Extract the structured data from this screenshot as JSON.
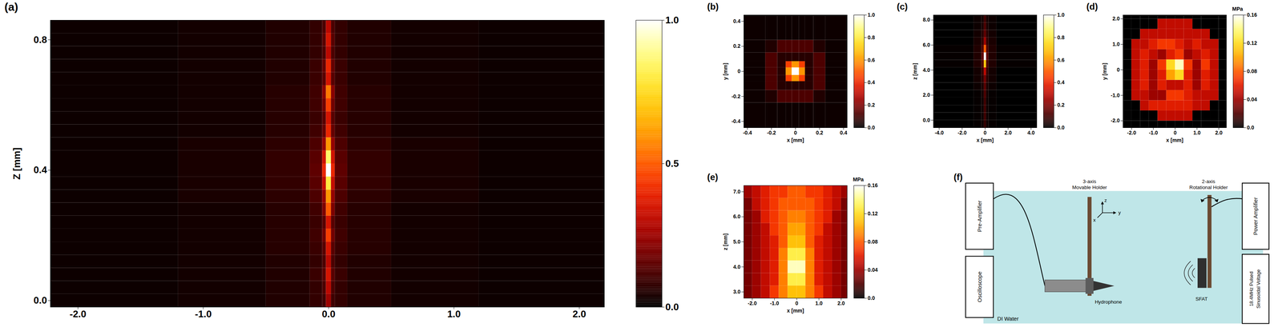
{
  "chart_data": [
    {
      "type": "heatmap",
      "panel_label": "(a)",
      "y_label": "Z [mm]",
      "xlim": [
        -2.22,
        2.2
      ],
      "ylim": [
        -0.02,
        0.86
      ],
      "xticks": [
        {
          "value": -2,
          "label": "-2.0"
        },
        {
          "value": -1,
          "label": "-1.0"
        },
        {
          "value": 0,
          "label": "0.0"
        },
        {
          "value": 1,
          "label": "1.0"
        },
        {
          "value": 2,
          "label": "2.0"
        }
      ],
      "yticks": [
        {
          "value": 0,
          "label": "0.0"
        },
        0.4,
        0.8
      ],
      "x_edges": [
        -2.22,
        -1.2,
        -0.5,
        -0.15,
        -0.05,
        -0.02,
        0.02,
        0.05,
        0.15,
        0.5,
        1.2,
        2.2
      ],
      "y_edges": [
        -0.02,
        0.02,
        0.06,
        0.1,
        0.14,
        0.18,
        0.22,
        0.26,
        0.3,
        0.34,
        0.38,
        0.42,
        0.46,
        0.5,
        0.54,
        0.58,
        0.62,
        0.66,
        0.7,
        0.74,
        0.78,
        0.82,
        0.86
      ],
      "cells": [
        [
          0.02,
          0.03,
          0.05,
          0.08,
          0.1,
          0.25,
          0.1,
          0.08,
          0.05,
          0.03,
          0.02
        ],
        [
          0.02,
          0.03,
          0.05,
          0.08,
          0.12,
          0.3,
          0.12,
          0.08,
          0.05,
          0.03,
          0.02
        ],
        [
          0.02,
          0.03,
          0.05,
          0.09,
          0.14,
          0.35,
          0.14,
          0.09,
          0.05,
          0.03,
          0.02
        ],
        [
          0.02,
          0.03,
          0.05,
          0.08,
          0.12,
          0.3,
          0.12,
          0.08,
          0.05,
          0.03,
          0.02
        ],
        [
          0.02,
          0.03,
          0.06,
          0.09,
          0.14,
          0.35,
          0.14,
          0.09,
          0.06,
          0.03,
          0.02
        ],
        [
          0.02,
          0.03,
          0.06,
          0.1,
          0.18,
          0.45,
          0.18,
          0.1,
          0.06,
          0.03,
          0.02
        ],
        [
          0.02,
          0.03,
          0.06,
          0.09,
          0.14,
          0.35,
          0.14,
          0.09,
          0.06,
          0.03,
          0.02
        ],
        [
          0.02,
          0.03,
          0.06,
          0.1,
          0.2,
          0.5,
          0.2,
          0.1,
          0.06,
          0.03,
          0.02
        ],
        [
          0.02,
          0.04,
          0.07,
          0.12,
          0.24,
          0.6,
          0.24,
          0.12,
          0.07,
          0.04,
          0.02
        ],
        [
          0.02,
          0.04,
          0.08,
          0.14,
          0.32,
          0.8,
          0.32,
          0.14,
          0.08,
          0.04,
          0.02
        ],
        [
          0.02,
          0.04,
          0.08,
          0.15,
          0.4,
          1.0,
          0.4,
          0.15,
          0.08,
          0.04,
          0.02
        ],
        [
          0.02,
          0.04,
          0.08,
          0.14,
          0.34,
          0.85,
          0.34,
          0.14,
          0.08,
          0.04,
          0.02
        ],
        [
          0.02,
          0.04,
          0.07,
          0.12,
          0.24,
          0.6,
          0.24,
          0.12,
          0.07,
          0.04,
          0.02
        ],
        [
          0.02,
          0.03,
          0.06,
          0.1,
          0.16,
          0.4,
          0.16,
          0.1,
          0.06,
          0.03,
          0.02
        ],
        [
          0.02,
          0.03,
          0.06,
          0.09,
          0.14,
          0.35,
          0.14,
          0.09,
          0.06,
          0.03,
          0.02
        ],
        [
          0.02,
          0.03,
          0.06,
          0.1,
          0.18,
          0.45,
          0.18,
          0.1,
          0.06,
          0.03,
          0.02
        ],
        [
          0.02,
          0.03,
          0.06,
          0.1,
          0.22,
          0.55,
          0.22,
          0.1,
          0.06,
          0.03,
          0.02
        ],
        [
          0.02,
          0.03,
          0.05,
          0.09,
          0.14,
          0.35,
          0.14,
          0.09,
          0.05,
          0.03,
          0.02
        ],
        [
          0.02,
          0.03,
          0.05,
          0.09,
          0.16,
          0.4,
          0.16,
          0.09,
          0.05,
          0.03,
          0.02
        ],
        [
          0.02,
          0.03,
          0.05,
          0.08,
          0.12,
          0.3,
          0.12,
          0.08,
          0.05,
          0.03,
          0.02
        ],
        [
          0.02,
          0.03,
          0.05,
          0.08,
          0.14,
          0.35,
          0.14,
          0.08,
          0.05,
          0.03,
          0.02
        ],
        [
          0.02,
          0.03,
          0.05,
          0.08,
          0.12,
          0.3,
          0.12,
          0.08,
          0.05,
          0.03,
          0.02
        ]
      ],
      "colorbar_lim": [
        0,
        1.0
      ],
      "colorbar_ticks": [
        {
          "value": 0,
          "label": "0.0"
        },
        0.5,
        {
          "value": 1,
          "label": "1.0"
        }
      ]
    },
    {
      "type": "heatmap",
      "panel_label": "(b)",
      "x_label": "x [mm]",
      "y_label": "y [mm]",
      "xlim": [
        -0.43,
        0.43
      ],
      "ylim": [
        -0.45,
        0.45
      ],
      "xticks": [
        -0.4,
        -0.2,
        0,
        0.2,
        0.4
      ],
      "yticks": [
        -0.4,
        -0.2,
        0,
        0.2,
        0.4
      ],
      "x_edges": [
        -0.45,
        -0.25,
        -0.15,
        -0.08,
        -0.03,
        0.03,
        0.08,
        0.15,
        0.25,
        0.45
      ],
      "y_edges": [
        -0.45,
        -0.25,
        -0.15,
        -0.08,
        -0.03,
        0.03,
        0.08,
        0.15,
        0.25,
        0.45
      ],
      "cells": [
        [
          0.02,
          0.02,
          0.02,
          0.02,
          0.02,
          0.02,
          0.02,
          0.02,
          0.02
        ],
        [
          0.02,
          0.05,
          0.12,
          0.12,
          0.12,
          0.12,
          0.12,
          0.05,
          0.02
        ],
        [
          0.02,
          0.12,
          0.06,
          0.06,
          0.06,
          0.06,
          0.06,
          0.12,
          0.02
        ],
        [
          0.02,
          0.12,
          0.06,
          0.45,
          0.6,
          0.45,
          0.06,
          0.12,
          0.02
        ],
        [
          0.02,
          0.12,
          0.06,
          0.6,
          1.0,
          0.6,
          0.06,
          0.12,
          0.02
        ],
        [
          0.02,
          0.12,
          0.06,
          0.45,
          0.6,
          0.45,
          0.06,
          0.12,
          0.02
        ],
        [
          0.02,
          0.12,
          0.06,
          0.06,
          0.06,
          0.06,
          0.06,
          0.12,
          0.02
        ],
        [
          0.02,
          0.05,
          0.12,
          0.12,
          0.12,
          0.12,
          0.12,
          0.05,
          0.02
        ],
        [
          0.02,
          0.02,
          0.02,
          0.02,
          0.02,
          0.02,
          0.02,
          0.02,
          0.02
        ]
      ],
      "colorbar_lim": [
        0,
        1.0
      ],
      "colorbar_ticks": [
        {
          "value": 0,
          "label": "0.0"
        },
        0.2,
        0.4,
        0.6,
        0.8,
        {
          "value": 1,
          "label": "1.0"
        }
      ]
    },
    {
      "type": "heatmap",
      "panel_label": "(c)",
      "x_label": "x [mm]",
      "y_label": "z [mm]",
      "xlim": [
        -4.5,
        4.5
      ],
      "ylim": [
        -0.6,
        8.4
      ],
      "xticks": [
        {
          "value": -4,
          "label": "-4.0"
        },
        {
          "value": -2,
          "label": "-2.0"
        },
        0,
        {
          "value": 2,
          "label": "2.0"
        },
        {
          "value": 4,
          "label": "4.0"
        }
      ],
      "yticks": [
        {
          "value": 0,
          "label": "0.0"
        },
        {
          "value": 2,
          "label": "2.0"
        },
        {
          "value": 4,
          "label": "4.0"
        },
        {
          "value": 6,
          "label": "6.0"
        },
        {
          "value": 8,
          "label": "8.0"
        }
      ],
      "x_edges": [
        -4.5,
        -1,
        -0.3,
        -0.1,
        0.1,
        0.3,
        1,
        4.5
      ],
      "y_edges": [
        -0.6,
        0,
        0.6,
        1.2,
        1.8,
        2.4,
        3.0,
        3.6,
        4.2,
        4.8,
        5.4,
        6.0,
        6.6,
        7.2,
        7.8,
        8.4
      ],
      "cells": [
        [
          0,
          0.01,
          0.02,
          0.08,
          0.02,
          0.01,
          0
        ],
        [
          0,
          0.01,
          0.02,
          0.1,
          0.02,
          0.01,
          0
        ],
        [
          0,
          0.01,
          0.02,
          0.1,
          0.02,
          0.01,
          0
        ],
        [
          0,
          0.01,
          0.02,
          0.1,
          0.02,
          0.01,
          0
        ],
        [
          0,
          0.01,
          0.03,
          0.12,
          0.03,
          0.01,
          0
        ],
        [
          0,
          0.02,
          0.04,
          0.14,
          0.04,
          0.02,
          0
        ],
        [
          0,
          0.03,
          0.06,
          0.18,
          0.06,
          0.03,
          0
        ],
        [
          0,
          0.03,
          0.08,
          0.3,
          0.08,
          0.03,
          0
        ],
        [
          0.01,
          0.05,
          0.12,
          0.7,
          0.12,
          0.05,
          0.01
        ],
        [
          0.01,
          0.05,
          0.15,
          1.0,
          0.15,
          0.05,
          0.01
        ],
        [
          0.01,
          0.05,
          0.12,
          0.5,
          0.12,
          0.05,
          0.01
        ],
        [
          0,
          0.04,
          0.08,
          0.25,
          0.08,
          0.04,
          0
        ],
        [
          0,
          0.03,
          0.06,
          0.15,
          0.06,
          0.03,
          0
        ],
        [
          0,
          0.02,
          0.04,
          0.12,
          0.04,
          0.02,
          0
        ],
        [
          0,
          0.02,
          0.03,
          0.1,
          0.03,
          0.02,
          0
        ]
      ],
      "colorbar_lim": [
        0,
        1.0
      ],
      "colorbar_ticks": [
        {
          "value": 0,
          "label": "0.0"
        },
        0.2,
        0.4,
        0.6,
        0.8,
        {
          "value": 1,
          "label": "1.0"
        }
      ]
    },
    {
      "type": "heatmap",
      "panel_label": "(d)",
      "x_label": "x [mm]",
      "y_label": "y [mm]",
      "xlim": [
        -2.39,
        2.35
      ],
      "ylim": [
        -2.27,
        2.15
      ],
      "xticks": [
        {
          "value": -2,
          "label": "-2.0"
        },
        {
          "value": -1,
          "label": "-1.0"
        },
        0,
        {
          "value": 1,
          "label": "1.0"
        },
        {
          "value": 2,
          "label": "2.0"
        }
      ],
      "yticks": [
        {
          "value": -2,
          "label": "-2.0"
        },
        {
          "value": -1,
          "label": "-1.0"
        },
        0,
        {
          "value": 1,
          "label": "1.0"
        },
        {
          "value": 2,
          "label": "2.0"
        }
      ],
      "x_edges": [
        -2.4,
        -2.0,
        -1.6,
        -1.2,
        -0.8,
        -0.4,
        0,
        0.4,
        0.8,
        1.2,
        1.6,
        2.0,
        2.4
      ],
      "y_edges": [
        -2.4,
        -2.0,
        -1.6,
        -1.2,
        -0.8,
        -0.4,
        0,
        0.4,
        0.8,
        1.2,
        1.6,
        2.0,
        2.4
      ],
      "cells": [
        [
          0,
          0,
          0,
          0,
          0,
          0,
          0,
          0,
          0,
          0,
          0,
          0
        ],
        [
          0,
          0,
          0,
          0,
          0.05,
          0.05,
          0.05,
          0.05,
          0,
          0,
          0,
          0
        ],
        [
          0,
          0,
          0.05,
          0.06,
          0.06,
          0.06,
          0.06,
          0.06,
          0.05,
          0.05,
          0,
          0
        ],
        [
          0,
          0.05,
          0.05,
          0.04,
          0.04,
          0.07,
          0.07,
          0.06,
          0.05,
          0.05,
          0.05,
          0
        ],
        [
          0,
          0.05,
          0.06,
          0.04,
          0.06,
          0.05,
          0.05,
          0.06,
          0.04,
          0.06,
          0.05,
          0
        ],
        [
          0,
          0.05,
          0.06,
          0.04,
          0.06,
          0.1,
          0.12,
          0.06,
          0.04,
          0.06,
          0.05,
          0
        ],
        [
          0,
          0.05,
          0.06,
          0.04,
          0.07,
          0.12,
          0.15,
          0.07,
          0.04,
          0.07,
          0.05,
          0
        ],
        [
          0,
          0.05,
          0.06,
          0.05,
          0.04,
          0.06,
          0.07,
          0.04,
          0.05,
          0.06,
          0.05,
          0
        ],
        [
          0,
          0.05,
          0.05,
          0.06,
          0.07,
          0.07,
          0.06,
          0.05,
          0.06,
          0.05,
          0.05,
          0
        ],
        [
          0,
          0,
          0.05,
          0.05,
          0.05,
          0.05,
          0.05,
          0.05,
          0.05,
          0.05,
          0,
          0
        ],
        [
          0,
          0,
          0,
          0,
          0.05,
          0.05,
          0.05,
          0.05,
          0,
          0,
          0,
          0
        ],
        [
          0,
          0,
          0,
          0,
          0,
          0,
          0,
          0,
          0,
          0,
          0,
          0
        ]
      ],
      "colorbar_label": "MPa",
      "colorbar_lim": [
        0,
        0.16
      ],
      "colorbar_ticks": [
        {
          "value": 0,
          "label": "0.0"
        },
        0.04,
        0.08,
        0.12,
        0.16
      ]
    },
    {
      "type": "heatmap",
      "panel_label": "(e)",
      "x_label": "x [mm]",
      "y_label": "z [mm]",
      "xlim": [
        -2.38,
        2.27
      ],
      "ylim": [
        2.75,
        7.25
      ],
      "xticks": [
        {
          "value": -2,
          "label": "-2.0"
        },
        {
          "value": -1,
          "label": "-1.0"
        },
        0,
        {
          "value": 1,
          "label": "1.0"
        },
        {
          "value": 2,
          "label": "2.0"
        }
      ],
      "yticks": [
        {
          "value": 3,
          "label": "3.0"
        },
        {
          "value": 4,
          "label": "4.0"
        },
        {
          "value": 5,
          "label": "5.0"
        },
        {
          "value": 6,
          "label": "6.0"
        },
        {
          "value": 7,
          "label": "7.0"
        }
      ],
      "x_edges": [
        -2.4,
        -2.0,
        -1.6,
        -1.2,
        -0.8,
        -0.4,
        0,
        0.4,
        0.8,
        1.2,
        1.6,
        2.0,
        2.4
      ],
      "y_edges": [
        2.75,
        3.25,
        3.75,
        4.25,
        4.75,
        5.25,
        5.75,
        6.25,
        6.75,
        7.25
      ],
      "cells": [
        [
          0.03,
          0.04,
          0.05,
          0.07,
          0.09,
          0.11,
          0.11,
          0.09,
          0.07,
          0.05,
          0.04,
          0.03
        ],
        [
          0.03,
          0.04,
          0.05,
          0.06,
          0.09,
          0.13,
          0.13,
          0.09,
          0.06,
          0.05,
          0.04,
          0.03
        ],
        [
          0.03,
          0.04,
          0.05,
          0.06,
          0.09,
          0.15,
          0.15,
          0.09,
          0.06,
          0.05,
          0.04,
          0.03
        ],
        [
          0.03,
          0.04,
          0.05,
          0.06,
          0.09,
          0.13,
          0.13,
          0.09,
          0.06,
          0.05,
          0.04,
          0.03
        ],
        [
          0.03,
          0.04,
          0.05,
          0.06,
          0.08,
          0.11,
          0.11,
          0.08,
          0.06,
          0.05,
          0.04,
          0.03
        ],
        [
          0.03,
          0.04,
          0.05,
          0.07,
          0.08,
          0.1,
          0.1,
          0.08,
          0.07,
          0.05,
          0.04,
          0.03
        ],
        [
          0.03,
          0.04,
          0.06,
          0.07,
          0.08,
          0.09,
          0.09,
          0.08,
          0.07,
          0.06,
          0.04,
          0.03
        ],
        [
          0.03,
          0.05,
          0.06,
          0.07,
          0.08,
          0.08,
          0.08,
          0.08,
          0.07,
          0.06,
          0.05,
          0.03
        ],
        [
          0.04,
          0.05,
          0.06,
          0.07,
          0.07,
          0.08,
          0.08,
          0.07,
          0.07,
          0.06,
          0.05,
          0.04
        ]
      ],
      "colorbar_label": "MPa",
      "colorbar_lim": [
        0,
        0.16
      ],
      "colorbar_ticks": [
        {
          "value": 0,
          "label": "0.0"
        },
        0.04,
        0.08,
        0.12,
        0.16
      ]
    }
  ],
  "diagram": {
    "panel_label": "(f)",
    "pre_amplifier": "Pre-Amplifier",
    "oscilloscope": "Oscilloscope",
    "power_amplifier": "Power Amplifier",
    "signal": "18.4MHz Pulsed Sinusoidal Voltage",
    "movable_holder": "3-axis Movable Holder",
    "rotational_holder": "2-axis Rotational Holder",
    "axes": {
      "z": "z",
      "x": "x",
      "y": "y"
    },
    "hydrophone": "Hydrophone",
    "transducer": "SFAT",
    "medium": "DI Water"
  }
}
